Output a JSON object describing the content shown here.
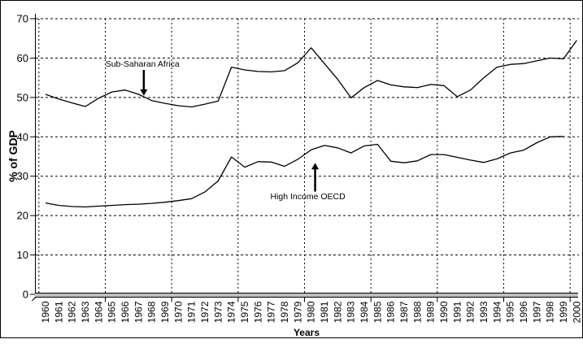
{
  "colors": {
    "background": "#ffffff",
    "line": "#000000",
    "grid": "#000000",
    "axis_band_fill": "#c0c0c0",
    "text": "#000000"
  },
  "chart_data": {
    "type": "line",
    "title": "",
    "xlabel": "Years",
    "ylabel": "% of GDP",
    "ylim": [
      0,
      70
    ],
    "ytick_step": 10,
    "ytick_labels": [
      "0",
      "10",
      "20",
      "30",
      "40",
      "50",
      "60",
      "70"
    ],
    "grid": "dashed, horizontal and vertical (every 5 years), plot area white",
    "legend_position": "none (series identified by in-plot arrow annotations)",
    "years": [
      1960,
      1961,
      1962,
      1963,
      1964,
      1965,
      1966,
      1967,
      1968,
      1969,
      1970,
      1971,
      1972,
      1973,
      1974,
      1975,
      1976,
      1977,
      1978,
      1979,
      1980,
      1981,
      1982,
      1983,
      1984,
      1985,
      1986,
      1987,
      1988,
      1989,
      1990,
      1991,
      1992,
      1993,
      1994,
      1995,
      1996,
      1997,
      1998,
      1999,
      2000
    ],
    "series": [
      {
        "name": "Sub-Saharan Africa",
        "values": [
          50.8,
          49.6,
          48.6,
          47.7,
          49.8,
          51.4,
          51.9,
          50.8,
          49.2,
          48.5,
          47.9,
          47.6,
          48.3,
          49.1,
          57.7,
          57.0,
          56.6,
          56.5,
          56.8,
          58.8,
          62.6,
          58.6,
          54.6,
          49.9,
          52.5,
          54.3,
          53.2,
          52.7,
          52.5,
          53.3,
          53.0,
          50.2,
          51.9,
          55.0,
          57.7,
          58.4,
          58.6,
          59.3,
          60.0,
          59.8,
          64.5
        ]
      },
      {
        "name": "High Income OECD",
        "values": [
          23.2,
          22.6,
          22.3,
          22.2,
          22.4,
          22.6,
          22.8,
          22.9,
          23.1,
          23.4,
          23.8,
          24.3,
          26.0,
          28.8,
          34.9,
          32.3,
          33.7,
          33.6,
          32.5,
          34.3,
          36.7,
          37.8,
          37.2,
          35.9,
          37.7,
          38.1,
          33.8,
          33.4,
          33.9,
          35.5,
          35.5,
          34.8,
          34.1,
          33.5,
          34.4,
          35.9,
          36.6,
          38.5,
          40.0,
          40.1,
          null
        ]
      }
    ],
    "annotations": [
      {
        "label": "Sub-Saharan Africa",
        "text_year": 1967.3,
        "text_value": 58.5,
        "arrow_year": 1967.4,
        "arrow_tail_value": 57.0,
        "arrow_tip_value": 50.4,
        "direction": "down"
      },
      {
        "label": "High Income OECD",
        "text_year": 1979.75,
        "text_value": 24.9,
        "arrow_year": 1980.3,
        "arrow_tail_value": 26.1,
        "arrow_tip_value": 33.4,
        "direction": "up"
      }
    ]
  }
}
